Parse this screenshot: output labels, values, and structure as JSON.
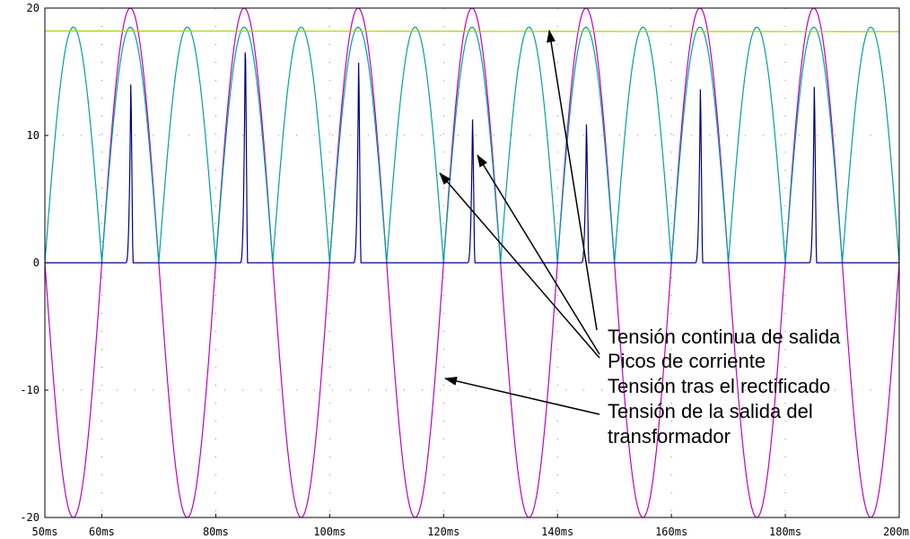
{
  "chart_data": {
    "type": "line",
    "xlim": [
      50,
      200
    ],
    "ylim": [
      -20,
      20
    ],
    "x_unit": "ms",
    "x_ticks": [
      50,
      60,
      80,
      100,
      120,
      140,
      160,
      180,
      200
    ],
    "x_tick_labels": [
      "50ms",
      "60ms",
      "80ms",
      "100ms",
      "120ms",
      "140ms",
      "160ms",
      "180ms",
      "200ms"
    ],
    "y_ticks": [
      20,
      10,
      0,
      -10,
      -20
    ],
    "y_tick_labels": [
      "20",
      "10",
      "0",
      "-10",
      "-20"
    ],
    "grid": "dotted",
    "series": [
      {
        "color": "#c000c0",
        "kind": "sine",
        "amplitude": 20,
        "period_ms": 20,
        "phase_zero_ms": 50
      },
      {
        "color": "#00a0a0",
        "kind": "rectified_sine",
        "amplitude": 18.5,
        "period_ms": 20,
        "phase_zero_ms": 50
      },
      {
        "color": "#000080",
        "kind": "current_pulses",
        "pulses": [
          {
            "t": 65.1,
            "peak": 14.8
          },
          {
            "t": 85.2,
            "peak": 18.5
          },
          {
            "t": 105.1,
            "peak": 16.6
          },
          {
            "t": 125.1,
            "peak": 11.9
          },
          {
            "t": 145.1,
            "peak": 11.5
          },
          {
            "t": 165.1,
            "peak": 14.4
          },
          {
            "t": 185.1,
            "peak": 14.6
          }
        ]
      },
      {
        "color": "#a8d000",
        "kind": "dc",
        "start_value": 18.2,
        "end_value": 18.15
      }
    ],
    "annotations": [
      {
        "line1": "Tensión continua de salida",
        "line2": ""
      },
      {
        "line1": "Picos de corriente",
        "line2": ""
      },
      {
        "line1": "Tensión tras el rectificado",
        "line2": ""
      },
      {
        "line1": "Tensión de la salida del",
        "line2": "transformador"
      }
    ]
  }
}
